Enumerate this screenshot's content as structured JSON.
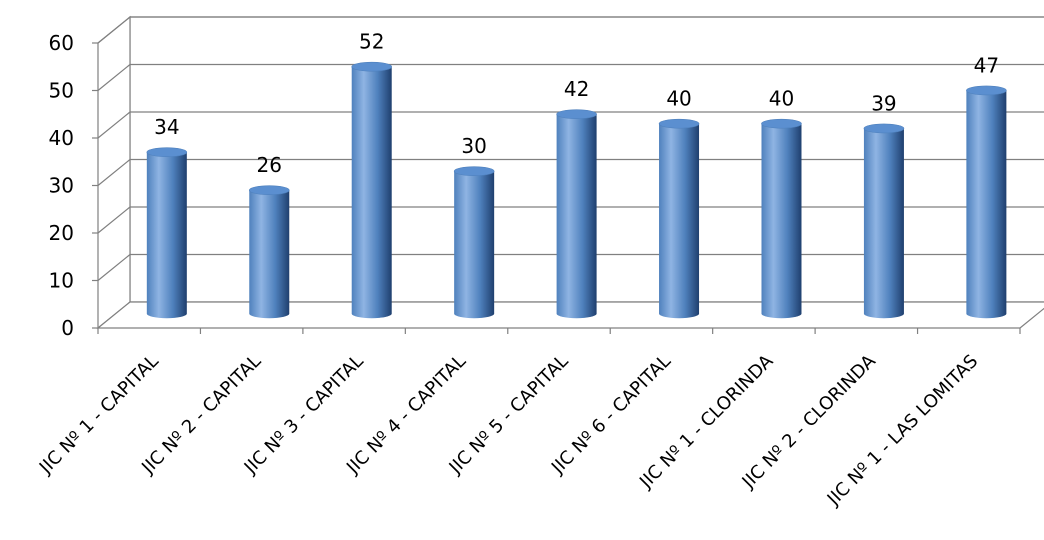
{
  "chart_data": {
    "type": "bar",
    "style": "3d-cylinder",
    "categories": [
      "JIC Nº 1 - CAPITAL",
      "JIC Nº 2 - CAPITAL",
      "JIC Nº 3 - CAPITAL",
      "JIC Nº 4 - CAPITAL",
      "JIC Nº 5 - CAPITAL",
      "JIC Nº 6 - CAPITAL",
      "JIC Nº 1 - CLORINDA",
      "JIC Nº 2 - CLORINDA",
      "JIC Nº 1 - LAS LOMITAS"
    ],
    "series": [
      {
        "values": [
          34,
          26,
          52,
          30,
          42,
          40,
          40,
          39,
          47
        ]
      }
    ],
    "data_labels": true,
    "ylim": [
      0,
      60
    ],
    "yticks": [
      0,
      10,
      20,
      30,
      40,
      50,
      60
    ],
    "grid": true,
    "legend": "none",
    "title": "",
    "xlabel": "",
    "ylabel": "",
    "colors": {
      "bar_light": "#8fb4e3",
      "bar_mid": "#4f81bd",
      "bar_dark": "#1f3f6e",
      "bar_top": "#5b8fd0",
      "grid": "#808080",
      "wall": "#ffffff"
    }
  }
}
